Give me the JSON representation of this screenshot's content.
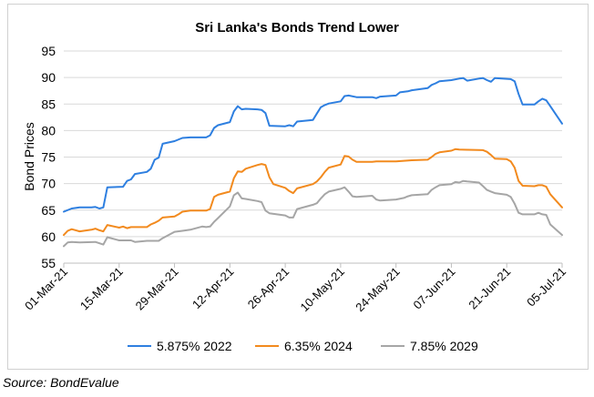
{
  "chart_data": {
    "type": "line",
    "title": "Sri Lanka's Bonds Trend Lower",
    "xlabel": "",
    "ylabel": "Bond Prices",
    "ylim": [
      55,
      95
    ],
    "yticks": [
      55,
      60,
      65,
      70,
      75,
      80,
      85,
      90,
      95
    ],
    "grid": true,
    "legend_position": "bottom",
    "x_range": [
      "2021-03-01",
      "2021-07-05"
    ],
    "x_ticks": [
      {
        "date": "2021-03-01",
        "label": "01-Mar-21"
      },
      {
        "date": "2021-03-15",
        "label": "15-Mar-21"
      },
      {
        "date": "2021-03-29",
        "label": "29-Mar-21"
      },
      {
        "date": "2021-04-12",
        "label": "12-Apr-21"
      },
      {
        "date": "2021-04-26",
        "label": "26-Apr-21"
      },
      {
        "date": "2021-05-10",
        "label": "10-May-21"
      },
      {
        "date": "2021-05-24",
        "label": "24-May-21"
      },
      {
        "date": "2021-06-07",
        "label": "07-Jun-21"
      },
      {
        "date": "2021-06-21",
        "label": "21-Jun-21"
      },
      {
        "date": "2021-07-05",
        "label": "05-Jul-21"
      }
    ],
    "series": [
      {
        "name": "5.875% 2022",
        "color": "#2E7FE0",
        "points": [
          [
            "2021-03-01",
            64.7
          ],
          [
            "2021-03-03",
            65.3
          ],
          [
            "2021-03-05",
            65.5
          ],
          [
            "2021-03-08",
            65.5
          ],
          [
            "2021-03-09",
            65.6
          ],
          [
            "2021-03-10",
            65.3
          ],
          [
            "2021-03-11",
            65.5
          ],
          [
            "2021-03-12",
            69.3
          ],
          [
            "2021-03-16",
            69.4
          ],
          [
            "2021-03-17",
            70.5
          ],
          [
            "2021-03-18",
            70.8
          ],
          [
            "2021-03-19",
            71.8
          ],
          [
            "2021-03-22",
            72.2
          ],
          [
            "2021-03-23",
            72.8
          ],
          [
            "2021-03-24",
            74.5
          ],
          [
            "2021-03-25",
            74.9
          ],
          [
            "2021-03-26",
            77.5
          ],
          [
            "2021-03-29",
            78.0
          ],
          [
            "2021-03-31",
            78.6
          ],
          [
            "2021-04-02",
            78.7
          ],
          [
            "2021-04-06",
            78.7
          ],
          [
            "2021-04-07",
            79.1
          ],
          [
            "2021-04-08",
            80.5
          ],
          [
            "2021-04-09",
            81.0
          ],
          [
            "2021-04-12",
            81.6
          ],
          [
            "2021-04-13",
            83.6
          ],
          [
            "2021-04-14",
            84.6
          ],
          [
            "2021-04-15",
            84.0
          ],
          [
            "2021-04-16",
            84.1
          ],
          [
            "2021-04-19",
            84.0
          ],
          [
            "2021-04-20",
            83.9
          ],
          [
            "2021-04-21",
            83.3
          ],
          [
            "2021-04-22",
            80.9
          ],
          [
            "2021-04-26",
            80.8
          ],
          [
            "2021-04-27",
            81.0
          ],
          [
            "2021-04-28",
            80.8
          ],
          [
            "2021-04-29",
            81.7
          ],
          [
            "2021-05-03",
            82.0
          ],
          [
            "2021-05-04",
            83.2
          ],
          [
            "2021-05-05",
            84.4
          ],
          [
            "2021-05-06",
            84.8
          ],
          [
            "2021-05-07",
            85.1
          ],
          [
            "2021-05-10",
            85.5
          ],
          [
            "2021-05-11",
            86.5
          ],
          [
            "2021-05-12",
            86.6
          ],
          [
            "2021-05-14",
            86.3
          ],
          [
            "2021-05-18",
            86.3
          ],
          [
            "2021-05-19",
            86.1
          ],
          [
            "2021-05-20",
            86.4
          ],
          [
            "2021-05-24",
            86.6
          ],
          [
            "2021-05-25",
            87.2
          ],
          [
            "2021-05-27",
            87.4
          ],
          [
            "2021-05-28",
            87.6
          ],
          [
            "2021-06-01",
            88.0
          ],
          [
            "2021-06-02",
            88.6
          ],
          [
            "2021-06-03",
            88.9
          ],
          [
            "2021-06-04",
            89.3
          ],
          [
            "2021-06-07",
            89.5
          ],
          [
            "2021-06-09",
            89.8
          ],
          [
            "2021-06-10",
            89.9
          ],
          [
            "2021-06-11",
            89.4
          ],
          [
            "2021-06-14",
            89.8
          ],
          [
            "2021-06-15",
            89.9
          ],
          [
            "2021-06-16",
            89.5
          ],
          [
            "2021-06-17",
            89.2
          ],
          [
            "2021-06-18",
            89.9
          ],
          [
            "2021-06-22",
            89.7
          ],
          [
            "2021-06-23",
            89.3
          ],
          [
            "2021-06-24",
            86.9
          ],
          [
            "2021-06-25",
            84.9
          ],
          [
            "2021-06-28",
            84.9
          ],
          [
            "2021-06-29",
            85.5
          ],
          [
            "2021-06-30",
            86.0
          ],
          [
            "2021-07-01",
            85.7
          ],
          [
            "2021-07-02",
            84.6
          ],
          [
            "2021-07-05",
            81.3
          ]
        ]
      },
      {
        "name": "6.35% 2024",
        "color": "#F28A1E",
        "points": [
          [
            "2021-03-01",
            60.3
          ],
          [
            "2021-03-02",
            61.1
          ],
          [
            "2021-03-03",
            61.4
          ],
          [
            "2021-03-05",
            61.0
          ],
          [
            "2021-03-08",
            61.3
          ],
          [
            "2021-03-09",
            61.5
          ],
          [
            "2021-03-10",
            61.2
          ],
          [
            "2021-03-11",
            61.0
          ],
          [
            "2021-03-12",
            62.2
          ],
          [
            "2021-03-15",
            61.7
          ],
          [
            "2021-03-16",
            61.9
          ],
          [
            "2021-03-17",
            61.6
          ],
          [
            "2021-03-18",
            61.8
          ],
          [
            "2021-03-19",
            61.8
          ],
          [
            "2021-03-22",
            61.8
          ],
          [
            "2021-03-23",
            62.3
          ],
          [
            "2021-03-24",
            62.6
          ],
          [
            "2021-03-25",
            63.0
          ],
          [
            "2021-03-26",
            63.6
          ],
          [
            "2021-03-29",
            63.8
          ],
          [
            "2021-03-30",
            64.2
          ],
          [
            "2021-03-31",
            64.7
          ],
          [
            "2021-04-02",
            64.9
          ],
          [
            "2021-04-06",
            64.9
          ],
          [
            "2021-04-07",
            65.2
          ],
          [
            "2021-04-08",
            67.5
          ],
          [
            "2021-04-09",
            67.9
          ],
          [
            "2021-04-12",
            68.5
          ],
          [
            "2021-04-13",
            71.0
          ],
          [
            "2021-04-14",
            72.3
          ],
          [
            "2021-04-15",
            72.2
          ],
          [
            "2021-04-16",
            72.8
          ],
          [
            "2021-04-19",
            73.5
          ],
          [
            "2021-04-20",
            73.7
          ],
          [
            "2021-04-21",
            73.5
          ],
          [
            "2021-04-22",
            71.2
          ],
          [
            "2021-04-23",
            69.9
          ],
          [
            "2021-04-26",
            69.2
          ],
          [
            "2021-04-27",
            68.6
          ],
          [
            "2021-04-28",
            68.2
          ],
          [
            "2021-04-29",
            69.1
          ],
          [
            "2021-05-03",
            69.9
          ],
          [
            "2021-05-04",
            70.4
          ],
          [
            "2021-05-05",
            71.2
          ],
          [
            "2021-05-06",
            72.2
          ],
          [
            "2021-05-07",
            73.0
          ],
          [
            "2021-05-10",
            73.6
          ],
          [
            "2021-05-11",
            75.2
          ],
          [
            "2021-05-12",
            75.1
          ],
          [
            "2021-05-13",
            74.5
          ],
          [
            "2021-05-14",
            74.1
          ],
          [
            "2021-05-18",
            74.1
          ],
          [
            "2021-05-19",
            74.2
          ],
          [
            "2021-05-24",
            74.2
          ],
          [
            "2021-05-26",
            74.3
          ],
          [
            "2021-05-28",
            74.4
          ],
          [
            "2021-06-01",
            74.5
          ],
          [
            "2021-06-02",
            75.0
          ],
          [
            "2021-06-03",
            75.6
          ],
          [
            "2021-06-04",
            75.9
          ],
          [
            "2021-06-07",
            76.2
          ],
          [
            "2021-06-08",
            76.5
          ],
          [
            "2021-06-09",
            76.4
          ],
          [
            "2021-06-15",
            76.3
          ],
          [
            "2021-06-16",
            76.0
          ],
          [
            "2021-06-17",
            75.4
          ],
          [
            "2021-06-18",
            74.7
          ],
          [
            "2021-06-21",
            74.6
          ],
          [
            "2021-06-22",
            74.2
          ],
          [
            "2021-06-23",
            73.0
          ],
          [
            "2021-06-24",
            70.5
          ],
          [
            "2021-06-25",
            69.6
          ],
          [
            "2021-06-28",
            69.5
          ],
          [
            "2021-06-29",
            69.7
          ],
          [
            "2021-06-30",
            69.7
          ],
          [
            "2021-07-01",
            69.4
          ],
          [
            "2021-07-02",
            68.0
          ],
          [
            "2021-07-05",
            65.5
          ]
        ]
      },
      {
        "name": "7.85% 2029",
        "color": "#A6A6A6",
        "points": [
          [
            "2021-03-01",
            58.2
          ],
          [
            "2021-03-02",
            58.9
          ],
          [
            "2021-03-03",
            59.0
          ],
          [
            "2021-03-05",
            58.9
          ],
          [
            "2021-03-09",
            59.0
          ],
          [
            "2021-03-11",
            58.5
          ],
          [
            "2021-03-12",
            59.9
          ],
          [
            "2021-03-15",
            59.3
          ],
          [
            "2021-03-18",
            59.3
          ],
          [
            "2021-03-19",
            59.0
          ],
          [
            "2021-03-22",
            59.2
          ],
          [
            "2021-03-25",
            59.2
          ],
          [
            "2021-03-26",
            59.7
          ],
          [
            "2021-03-29",
            60.9
          ],
          [
            "2021-03-31",
            61.1
          ],
          [
            "2021-04-02",
            61.3
          ],
          [
            "2021-04-05",
            61.9
          ],
          [
            "2021-04-06",
            61.8
          ],
          [
            "2021-04-07",
            61.9
          ],
          [
            "2021-04-08",
            62.8
          ],
          [
            "2021-04-09",
            63.5
          ],
          [
            "2021-04-12",
            65.7
          ],
          [
            "2021-04-13",
            67.8
          ],
          [
            "2021-04-14",
            68.3
          ],
          [
            "2021-04-15",
            67.2
          ],
          [
            "2021-04-16",
            67.1
          ],
          [
            "2021-04-19",
            66.7
          ],
          [
            "2021-04-20",
            66.5
          ],
          [
            "2021-04-21",
            64.9
          ],
          [
            "2021-04-22",
            64.4
          ],
          [
            "2021-04-26",
            64.0
          ],
          [
            "2021-04-27",
            63.6
          ],
          [
            "2021-04-28",
            63.6
          ],
          [
            "2021-04-29",
            65.2
          ],
          [
            "2021-05-03",
            66.0
          ],
          [
            "2021-05-04",
            66.3
          ],
          [
            "2021-05-05",
            67.2
          ],
          [
            "2021-05-06",
            68.0
          ],
          [
            "2021-05-07",
            68.5
          ],
          [
            "2021-05-10",
            69.0
          ],
          [
            "2021-05-11",
            69.3
          ],
          [
            "2021-05-12",
            68.5
          ],
          [
            "2021-05-13",
            67.6
          ],
          [
            "2021-05-14",
            67.5
          ],
          [
            "2021-05-18",
            67.7
          ],
          [
            "2021-05-19",
            67.0
          ],
          [
            "2021-05-20",
            66.8
          ],
          [
            "2021-05-24",
            67.0
          ],
          [
            "2021-05-26",
            67.3
          ],
          [
            "2021-05-27",
            67.6
          ],
          [
            "2021-05-28",
            67.8
          ],
          [
            "2021-06-01",
            68.0
          ],
          [
            "2021-06-02",
            68.8
          ],
          [
            "2021-06-03",
            69.3
          ],
          [
            "2021-06-04",
            69.7
          ],
          [
            "2021-06-07",
            69.9
          ],
          [
            "2021-06-08",
            70.3
          ],
          [
            "2021-06-09",
            70.2
          ],
          [
            "2021-06-10",
            70.5
          ],
          [
            "2021-06-11",
            70.4
          ],
          [
            "2021-06-14",
            70.2
          ],
          [
            "2021-06-15",
            69.5
          ],
          [
            "2021-06-16",
            68.8
          ],
          [
            "2021-06-17",
            68.5
          ],
          [
            "2021-06-18",
            68.2
          ],
          [
            "2021-06-21",
            67.9
          ],
          [
            "2021-06-22",
            67.5
          ],
          [
            "2021-06-23",
            66.2
          ],
          [
            "2021-06-24",
            64.5
          ],
          [
            "2021-06-25",
            64.2
          ],
          [
            "2021-06-28",
            64.2
          ],
          [
            "2021-06-29",
            64.5
          ],
          [
            "2021-06-30",
            64.2
          ],
          [
            "2021-07-01",
            64.1
          ],
          [
            "2021-07-02",
            62.3
          ],
          [
            "2021-07-05",
            60.3
          ]
        ]
      }
    ]
  },
  "source_note": "Source: BondEvalue"
}
